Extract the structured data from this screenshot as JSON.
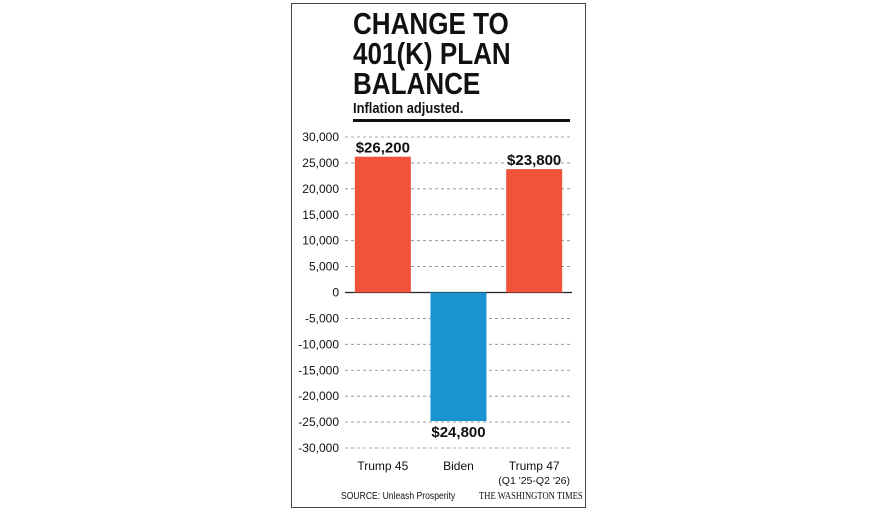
{
  "header": {
    "title": "CHANGE TO\n401(K) PLAN\nBALANCE",
    "subtitle": "Inflation adjusted."
  },
  "footer": {
    "source": "SOURCE: Unleash Prosperity",
    "publisher": "THE WASHINGTON TIMES"
  },
  "chart_data": {
    "type": "bar",
    "categories": [
      "Trump 45",
      "Biden",
      "Trump 47"
    ],
    "category_sublabels": [
      "",
      "",
      "(Q1 '25-Q2 '26)"
    ],
    "values": [
      26200,
      -24800,
      23800
    ],
    "data_labels": [
      "$26,200",
      "$24,800",
      "$23,800"
    ],
    "bar_colors": [
      "#f0533a",
      "#1a94d0",
      "#f0533a"
    ],
    "yticks": [
      30000,
      25000,
      20000,
      15000,
      10000,
      5000,
      0,
      -5000,
      -10000,
      -15000,
      -20000,
      -25000,
      -30000
    ],
    "ytick_labels": [
      "30,000",
      "25,000",
      "20,000",
      "15,000",
      "10,000",
      "5,000",
      "0",
      "-5,000",
      "-10,000",
      "-15,000",
      "-20,000",
      "-25,000",
      "-30,000"
    ],
    "ylim": [
      -30000,
      30000
    ],
    "grid": true,
    "grid_style": "dashed"
  }
}
